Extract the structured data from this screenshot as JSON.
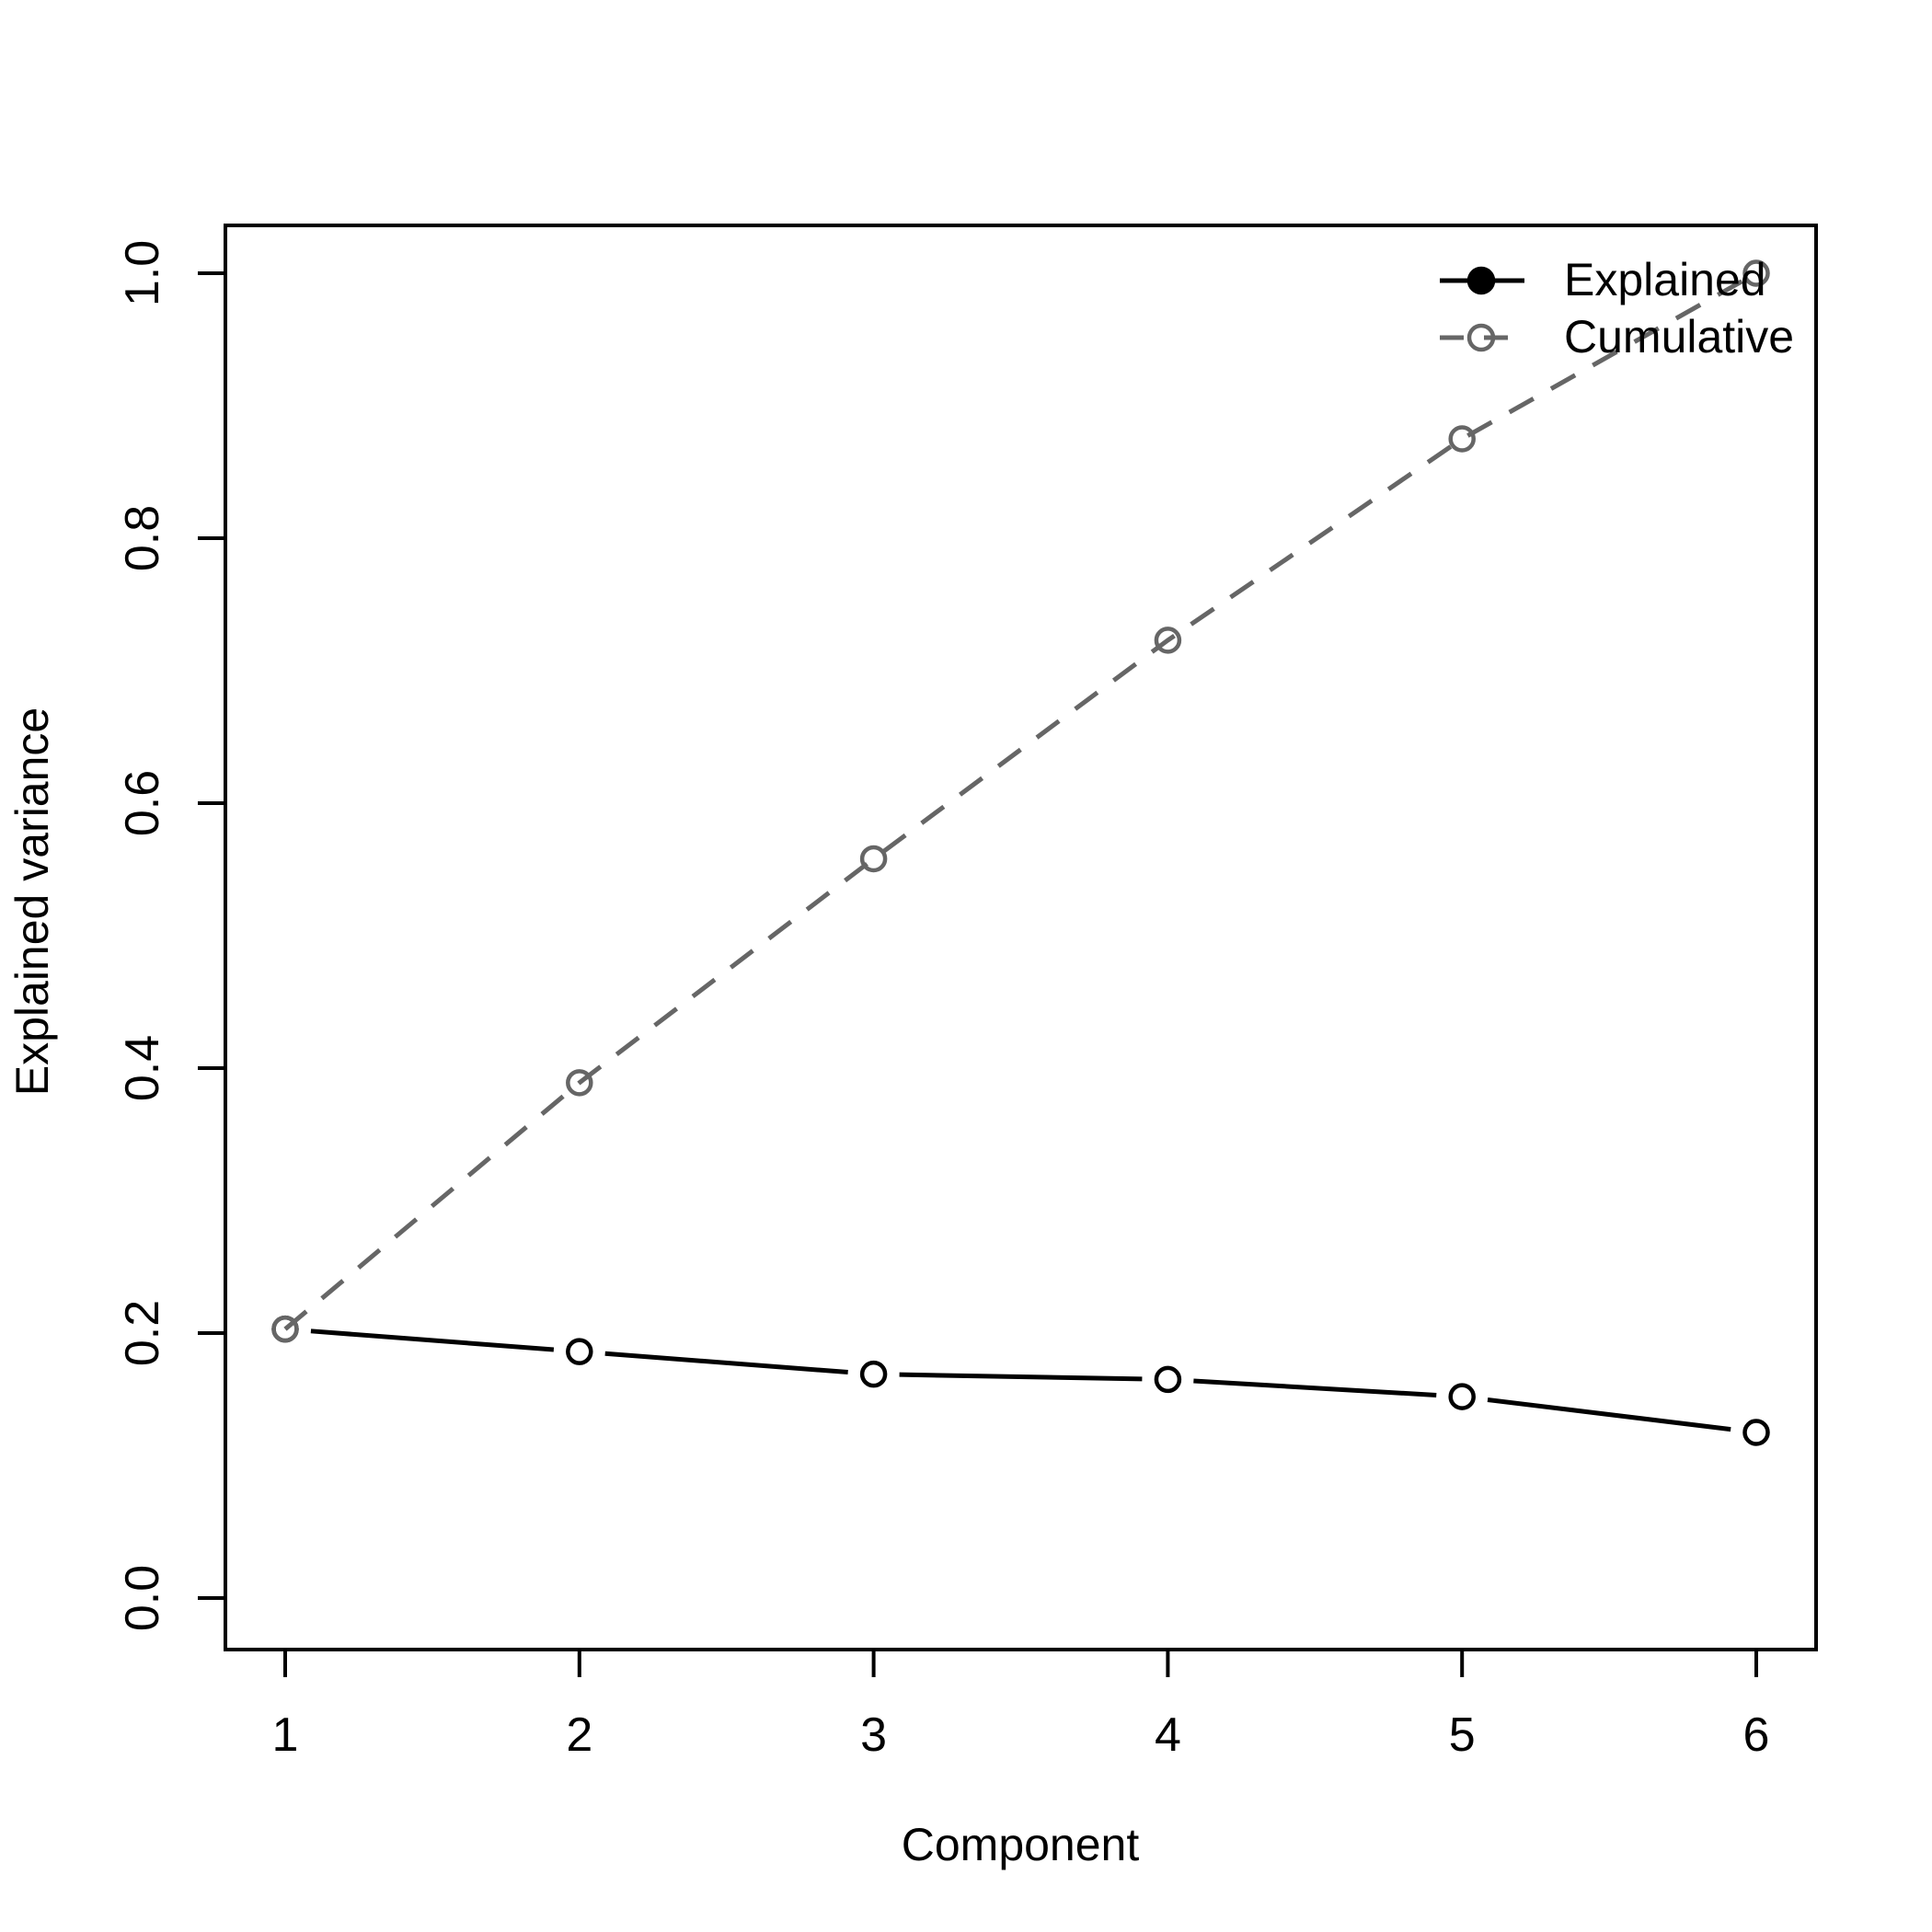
{
  "chart_data": {
    "type": "line",
    "title": "",
    "xlabel": "Component",
    "ylabel": "Explained variance",
    "x": [
      1,
      2,
      3,
      4,
      5,
      6
    ],
    "x_ticks": [
      "1",
      "2",
      "3",
      "4",
      "5",
      "6"
    ],
    "y_ticks": [
      "0.0",
      "0.2",
      "0.4",
      "0.6",
      "0.8",
      "1.0"
    ],
    "xlim": [
      0.8,
      6.2
    ],
    "ylim": [
      0,
      1
    ],
    "grid": false,
    "background_color": "#ffffff",
    "series": [
      {
        "name": "Explained",
        "values": [
          0.203,
          0.186,
          0.169,
          0.165,
          0.152,
          0.125
        ],
        "color": "#000000",
        "line_style": "solid",
        "marker": "open-circle",
        "legend_marker": "filled-circle",
        "line_through_markers": false
      },
      {
        "name": "Cumulative",
        "values": [
          0.203,
          0.389,
          0.558,
          0.723,
          0.875,
          1.0
        ],
        "color": "#666666",
        "line_style": "dashed",
        "marker": "open-circle",
        "legend_marker": "open-circle",
        "line_through_markers": true
      }
    ],
    "legend": {
      "position": "top-right",
      "entries": [
        "Explained",
        "Cumulative"
      ]
    }
  }
}
